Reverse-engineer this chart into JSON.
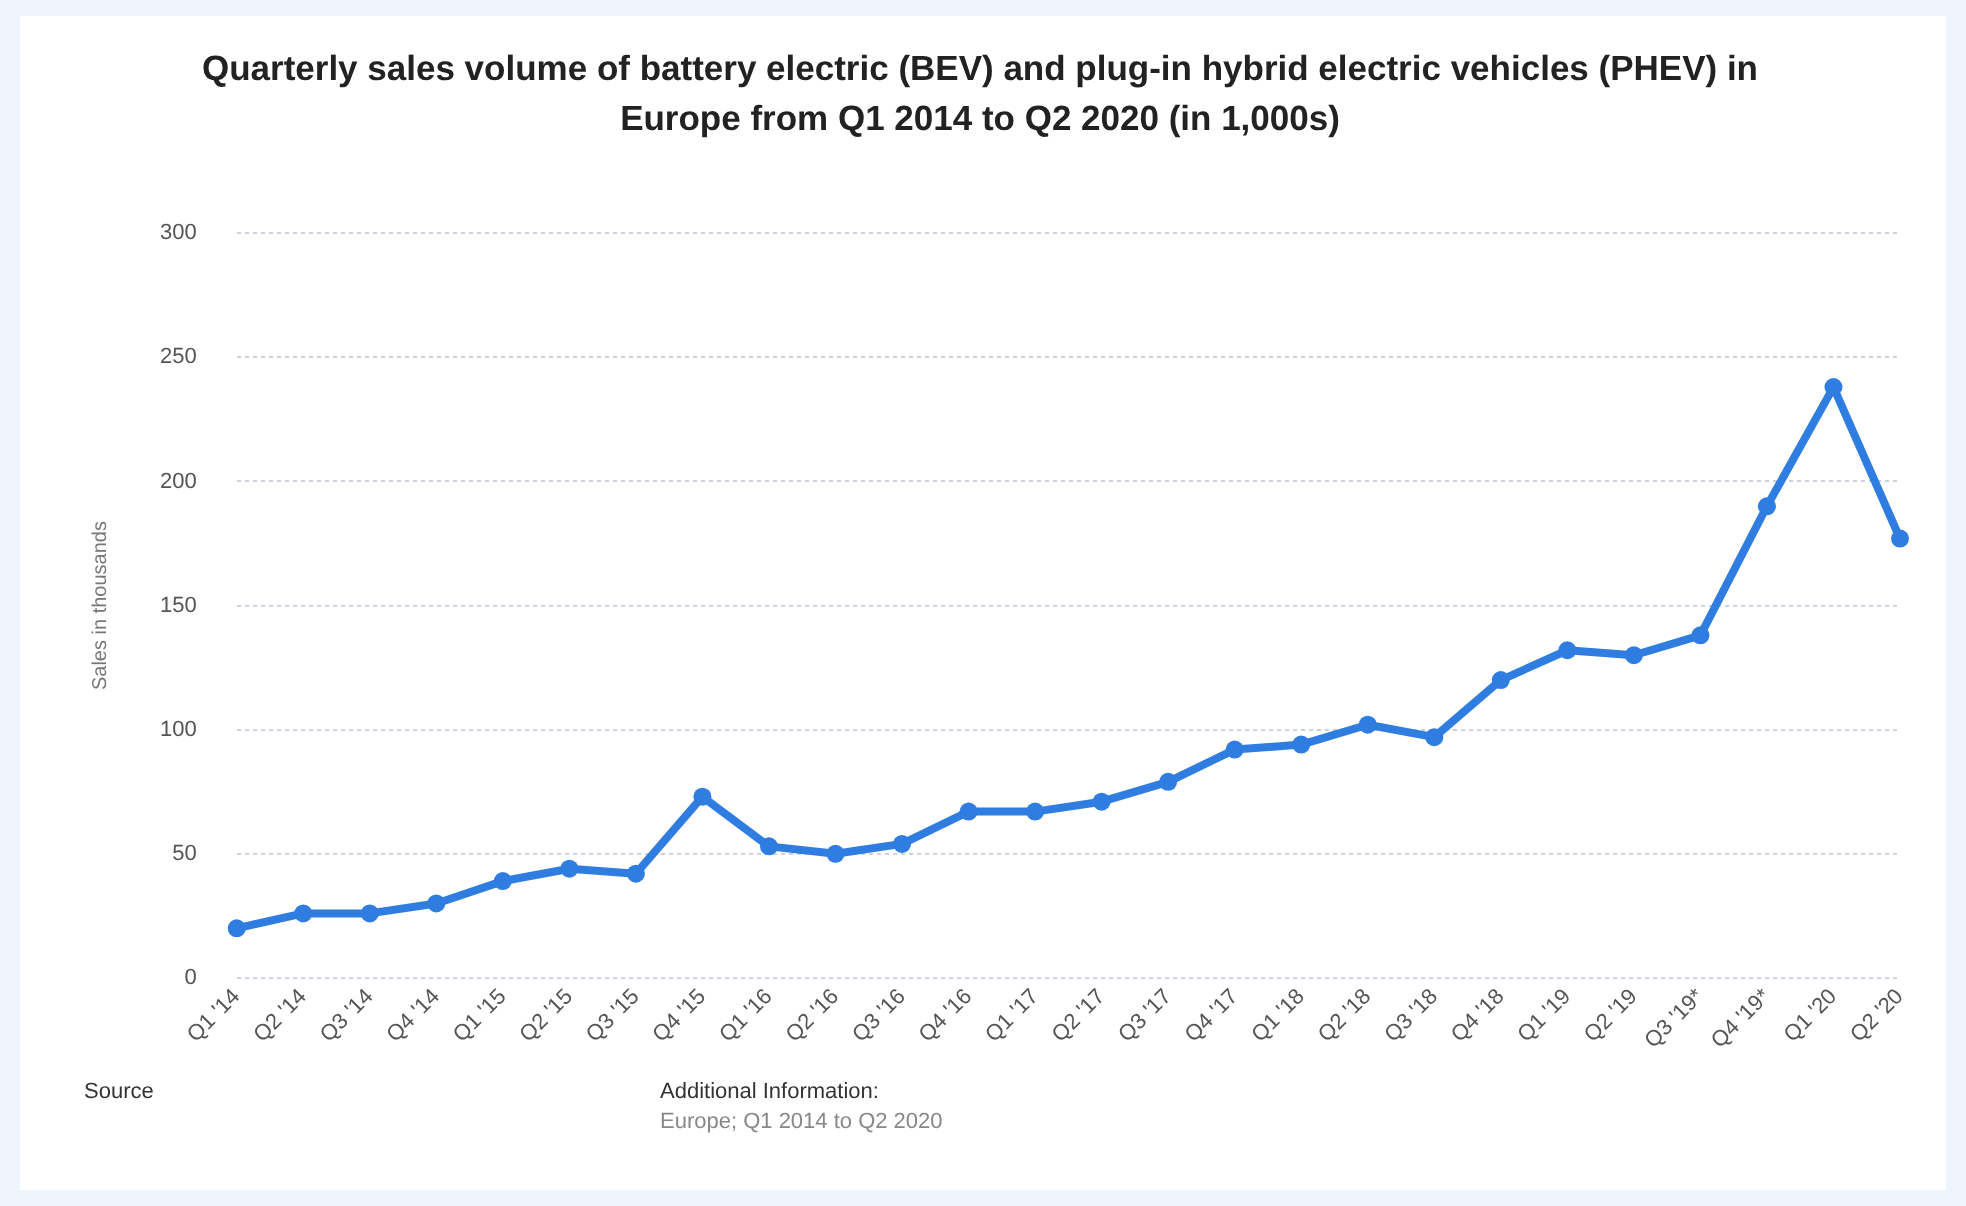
{
  "chart_data": {
    "type": "line",
    "title": "Quarterly sales volume of battery electric (BEV) and plug-in hybrid electric vehicles (PHEV) in Europe from Q1 2014 to Q2 2020 (in 1,000s)",
    "ylabel": "Sales in thousands",
    "categories": [
      "Q1 '14",
      "Q2 '14",
      "Q3 '14",
      "Q4 '14",
      "Q1 '15",
      "Q2 '15",
      "Q3 '15",
      "Q4 '15",
      "Q1 '16",
      "Q2 '16",
      "Q3 '16",
      "Q4 '16",
      "Q1 '17",
      "Q2 '17",
      "Q3 '17",
      "Q4 '17",
      "Q1 '18",
      "Q2 '18",
      "Q3 '18",
      "Q4 '18",
      "Q1 '19",
      "Q2 '19",
      "Q3 '19*",
      "Q4 '19*",
      "Q1 '20",
      "Q2 '20"
    ],
    "series": [
      {
        "color": "#2f7de1",
        "values": [
          20,
          26,
          26,
          30,
          39,
          44,
          42,
          73,
          53,
          50,
          54,
          67,
          67,
          71,
          79,
          92,
          94,
          102,
          97,
          120,
          132,
          130,
          138,
          190,
          238,
          177
        ]
      }
    ],
    "ylim": [
      0,
      300
    ],
    "yticks": [
      0,
      50,
      100,
      150,
      200,
      250,
      300
    ],
    "grid": "y",
    "marker": "circle",
    "line_style": "solid",
    "legend": false,
    "annotations": [
      "Source",
      "Additional Information:",
      "Europe; Q1 2014 to Q2 2020"
    ]
  }
}
